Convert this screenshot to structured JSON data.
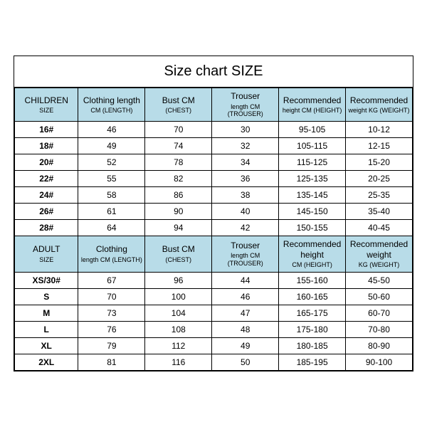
{
  "title": "Size chart SIZE",
  "children": {
    "headers": [
      {
        "main": "CHILDREN",
        "sub": "SIZE"
      },
      {
        "main": "Clothing length",
        "sub": "CM (LENGTH)"
      },
      {
        "main": "Bust CM",
        "sub": "(CHEST)"
      },
      {
        "main": "Trouser",
        "sub": "length CM (TROUSER)"
      },
      {
        "main": "Recommended",
        "sub": "height CM (HEIGHT)"
      },
      {
        "main": "Recommended",
        "sub": "weight KG (WEIGHT)"
      }
    ],
    "rows": [
      [
        "16#",
        "46",
        "70",
        "30",
        "95-105",
        "10-12"
      ],
      [
        "18#",
        "49",
        "74",
        "32",
        "105-115",
        "12-15"
      ],
      [
        "20#",
        "52",
        "78",
        "34",
        "115-125",
        "15-20"
      ],
      [
        "22#",
        "55",
        "82",
        "36",
        "125-135",
        "20-25"
      ],
      [
        "24#",
        "58",
        "86",
        "38",
        "135-145",
        "25-35"
      ],
      [
        "26#",
        "61",
        "90",
        "40",
        "145-150",
        "35-40"
      ],
      [
        "28#",
        "64",
        "94",
        "42",
        "150-155",
        "40-45"
      ]
    ]
  },
  "adult": {
    "headers": [
      {
        "main": "ADULT",
        "sub": "SIZE"
      },
      {
        "main": "Clothing",
        "sub": "length CM (LENGTH)"
      },
      {
        "main": "Bust CM",
        "sub": "(CHEST)"
      },
      {
        "main": "Trouser",
        "sub": "length CM (TROUSER)"
      },
      {
        "main": "Recommended height",
        "sub": "CM (HEIGHT)"
      },
      {
        "main": "Recommended weight",
        "sub": "KG (WEIGHT)"
      }
    ],
    "rows": [
      [
        "XS/30#",
        "67",
        "96",
        "44",
        "155-160",
        "45-50"
      ],
      [
        "S",
        "70",
        "100",
        "46",
        "160-165",
        "50-60"
      ],
      [
        "M",
        "73",
        "104",
        "47",
        "165-175",
        "60-70"
      ],
      [
        "L",
        "76",
        "108",
        "48",
        "175-180",
        "70-80"
      ],
      [
        "XL",
        "79",
        "112",
        "49",
        "180-185",
        "80-90"
      ],
      [
        "2XL",
        "81",
        "116",
        "50",
        "185-195",
        "90-100"
      ]
    ]
  },
  "colors": {
    "header_bg": "#b8dce8",
    "border": "#000000",
    "bg": "#ffffff"
  }
}
